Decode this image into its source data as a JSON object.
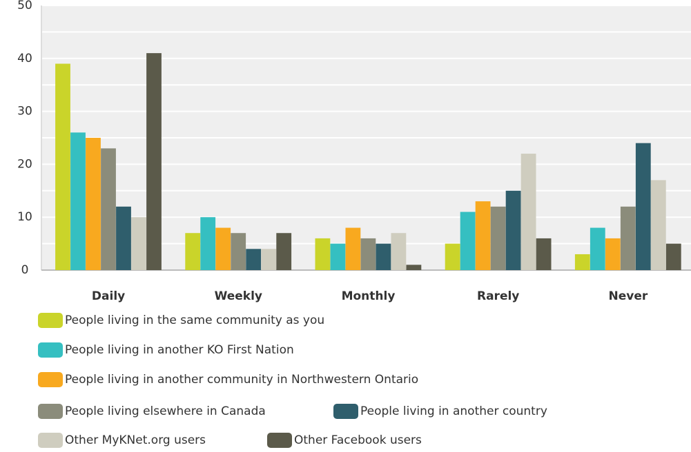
{
  "chart_data": {
    "type": "bar",
    "categories": [
      "Daily",
      "Weekly",
      "Monthly",
      "Rarely",
      "Never"
    ],
    "series": [
      {
        "name": "People living in the same community as you",
        "color": "#cad42a",
        "values": [
          39,
          7,
          6,
          5,
          3
        ]
      },
      {
        "name": "People living in another KO First Nation",
        "color": "#35bfc1",
        "values": [
          26,
          10,
          5,
          11,
          8
        ]
      },
      {
        "name": "People living in another community in Northwestern Ontario",
        "color": "#f8a91f",
        "values": [
          25,
          8,
          8,
          13,
          6
        ]
      },
      {
        "name": "People living elsewhere in Canada",
        "color": "#8b8c7b",
        "values": [
          23,
          7,
          6,
          12,
          12
        ]
      },
      {
        "name": "People living in another country",
        "color": "#2f5e6c",
        "values": [
          12,
          4,
          5,
          15,
          24
        ]
      },
      {
        "name": "Other MyKNet.org users",
        "color": "#cfcdbf",
        "values": [
          10,
          4,
          7,
          22,
          17
        ]
      },
      {
        "name": "Other Facebook users",
        "color": "#5b5a4a",
        "values": [
          41,
          7,
          1,
          6,
          5
        ]
      }
    ],
    "ylim": [
      0,
      50
    ],
    "yticks": [
      0,
      10,
      20,
      30,
      40,
      50
    ],
    "minor_yticks": [
      5,
      15,
      25,
      35,
      45
    ],
    "grid": true
  }
}
